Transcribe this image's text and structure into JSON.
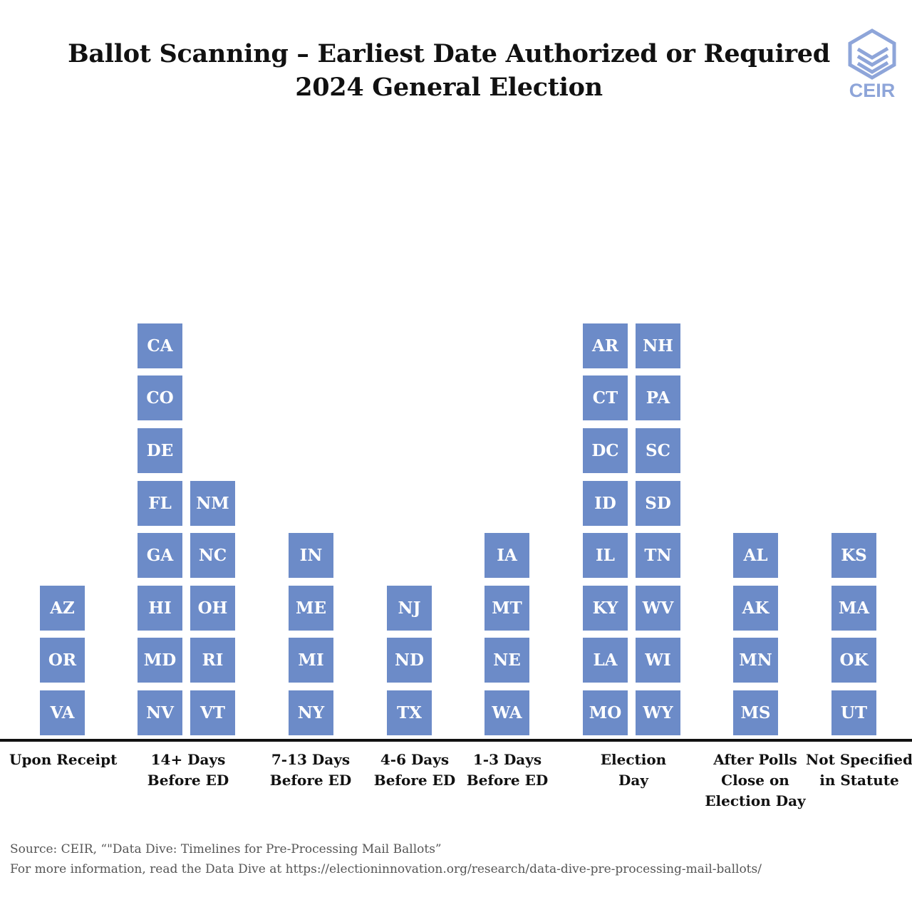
{
  "title_lines": [
    "Ballot Scanning – Earliest Date Authorized or Required",
    "2024 General Election"
  ],
  "logo_text": "CEIR",
  "colors": {
    "tile": "#6c8bc8",
    "tile_text": "#ffffff",
    "logo": "#8ea5d9"
  },
  "chart_data": {
    "type": "table",
    "title": "Ballot Scanning – Earliest Date Authorized or Required",
    "subtitle": "2024 General Election",
    "categories": [
      {
        "label_lines": [
          "Upon Receipt"
        ],
        "states": [
          "AZ",
          "OR",
          "VA"
        ]
      },
      {
        "label_lines": [
          "14+ Days",
          "Before ED"
        ],
        "states": [
          "CA",
          "CO",
          "DE",
          "FL",
          "GA",
          "HI",
          "MD",
          "NV",
          "NM",
          "NC",
          "OH",
          "RI",
          "VT"
        ]
      },
      {
        "label_lines": [
          "7-13 Days",
          "Before ED"
        ],
        "states": [
          "IN",
          "ME",
          "MI",
          "NY"
        ]
      },
      {
        "label_lines": [
          "4-6 Days",
          "Before ED"
        ],
        "states": [
          "NJ",
          "ND",
          "TX"
        ]
      },
      {
        "label_lines": [
          "1-3 Days",
          "Before ED"
        ],
        "states": [
          "IA",
          "MT",
          "NE",
          "WA"
        ]
      },
      {
        "label_lines": [
          "Election",
          "Day"
        ],
        "states": [
          "AR",
          "CT",
          "DC",
          "ID",
          "IL",
          "KY",
          "LA",
          "MO",
          "NH",
          "PA",
          "SC",
          "SD",
          "TN",
          "WV",
          "WI",
          "WY"
        ]
      },
      {
        "label_lines": [
          "After Polls",
          "Close on",
          "Election Day"
        ],
        "states": [
          "AL",
          "AK",
          "MN",
          "MS"
        ]
      },
      {
        "label_lines": [
          "Not Specified",
          "in Statute"
        ],
        "states": [
          "KS",
          "MA",
          "OK",
          "UT"
        ]
      }
    ],
    "counts": [
      3,
      13,
      4,
      3,
      4,
      16,
      4,
      4
    ]
  },
  "footer": {
    "source": "Source: CEIR, “\"Data Dive: Timelines for Pre-Processing Mail Ballots”",
    "more_info": "For more information, read the Data Dive at https://electioninnovation.org/research/data-dive-pre-processing-mail-ballots/"
  }
}
